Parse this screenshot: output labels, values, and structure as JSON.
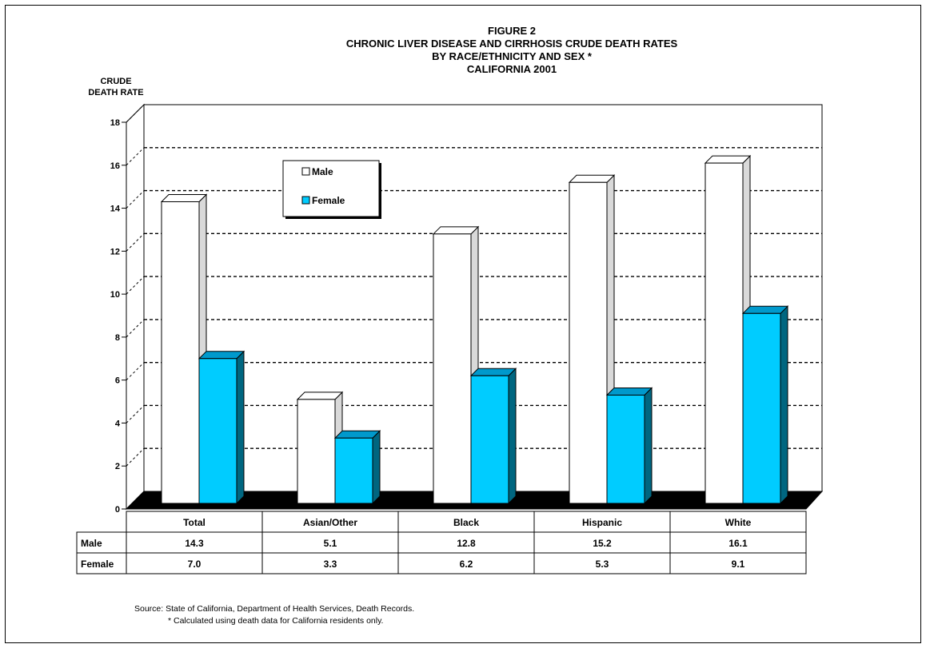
{
  "chart_data": {
    "type": "bar",
    "title_lines": [
      "FIGURE 2",
      "CHRONIC LIVER DISEASE AND CIRRHOSIS CRUDE DEATH RATES",
      "BY RACE/ETHNICITY AND SEX *",
      "CALIFORNIA 2001"
    ],
    "ylabel_lines": [
      "CRUDE",
      "DEATH RATE"
    ],
    "categories": [
      "Total",
      "Asian/Other",
      "Black",
      "Hispanic",
      "White"
    ],
    "series": [
      {
        "name": "Male",
        "values": [
          14.3,
          5.1,
          12.8,
          15.2,
          16.1
        ],
        "display": [
          "14.3",
          "5.1",
          "12.8",
          "15.2",
          "16.1"
        ],
        "color": "#ffffff",
        "side_color": "#d9d9d9"
      },
      {
        "name": "Female",
        "values": [
          7.0,
          3.3,
          6.2,
          5.3,
          9.1
        ],
        "display": [
          "7.0",
          "3.3",
          "6.2",
          "5.3",
          "9.1"
        ],
        "color": "#00ccff",
        "side_color": "#006680"
      }
    ],
    "ylim": [
      0,
      18
    ],
    "yticks": [
      0,
      2,
      4,
      6,
      8,
      10,
      12,
      14,
      16,
      18
    ],
    "grid": true,
    "legend": "top-left",
    "data_table": true
  },
  "footnotes": {
    "source": "Source:  State of California, Department of Health Services, Death Records.",
    "note": "*  Calculated using death data for California residents only."
  }
}
